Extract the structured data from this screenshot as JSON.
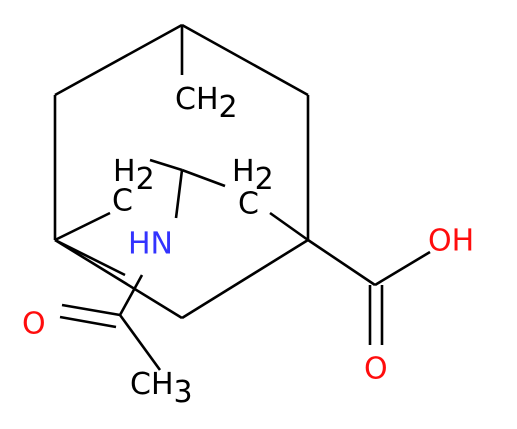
{
  "molecule": {
    "atoms": [
      {
        "main": "CH",
        "sub": "2"
      },
      {
        "top": "H",
        "sub": "2",
        "bottom": "C"
      },
      {
        "top": "H",
        "sub": "2",
        "bottom": "C"
      },
      {
        "main": "HN"
      },
      {
        "main": "OH"
      },
      {
        "main": "O"
      },
      {
        "main": "O"
      },
      {
        "main": "CH",
        "sub": "3"
      }
    ]
  }
}
